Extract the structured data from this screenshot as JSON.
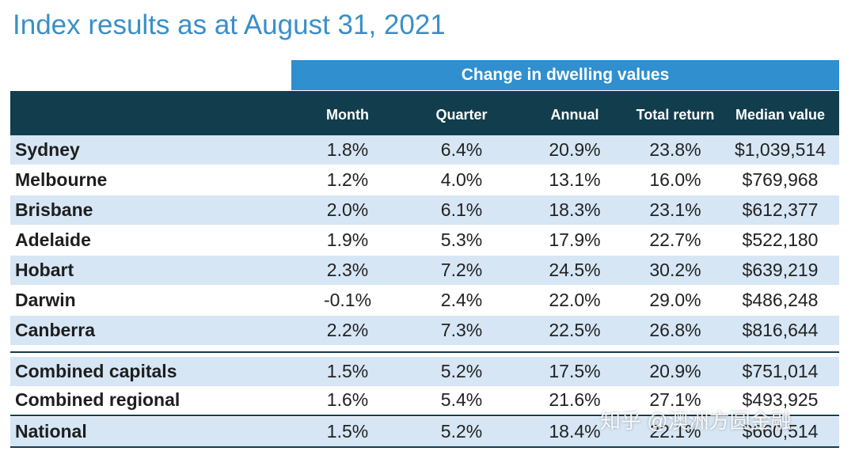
{
  "title": "Index results as at August 31, 2021",
  "band": "Change in dwelling values",
  "columns": [
    "Month",
    "Quarter",
    "Annual",
    "Total return",
    "Median value"
  ],
  "rows": [
    {
      "name": "Sydney",
      "month": "1.8%",
      "quarter": "6.4%",
      "annual": "20.9%",
      "total": "23.8%",
      "median": "$1,039,514"
    },
    {
      "name": "Melbourne",
      "month": "1.2%",
      "quarter": "4.0%",
      "annual": "13.1%",
      "total": "16.0%",
      "median": "$769,968"
    },
    {
      "name": "Brisbane",
      "month": "2.0%",
      "quarter": "6.1%",
      "annual": "18.3%",
      "total": "23.1%",
      "median": "$612,377"
    },
    {
      "name": "Adelaide",
      "month": "1.9%",
      "quarter": "5.3%",
      "annual": "17.9%",
      "total": "22.7%",
      "median": "$522,180"
    },
    {
      "name": "Hobart",
      "month": "2.3%",
      "quarter": "7.2%",
      "annual": "24.5%",
      "total": "30.2%",
      "median": "$639,219"
    },
    {
      "name": "Darwin",
      "month": "-0.1%",
      "quarter": "2.4%",
      "annual": "22.0%",
      "total": "29.0%",
      "median": "$486,248"
    },
    {
      "name": "Canberra",
      "month": "2.2%",
      "quarter": "7.3%",
      "annual": "22.5%",
      "total": "26.8%",
      "median": "$816,644"
    },
    {
      "name": "Combined capitals",
      "month": "1.5%",
      "quarter": "5.2%",
      "annual": "17.5%",
      "total": "20.9%",
      "median": "$751,014"
    },
    {
      "name": "Combined regional",
      "month": "1.6%",
      "quarter": "5.4%",
      "annual": "21.6%",
      "total": "27.1%",
      "median": "$493,925"
    },
    {
      "name": "National",
      "month": "1.5%",
      "quarter": "5.2%",
      "annual": "18.4%",
      "total": "22.1%",
      "median": "$660,514"
    }
  ],
  "watermark": "知乎 @澳洲方圆金融",
  "colors": {
    "title": "#3a8fc7",
    "band": "#2f8fcf",
    "header": "#123d4d",
    "shade": "#d6e6f5"
  }
}
